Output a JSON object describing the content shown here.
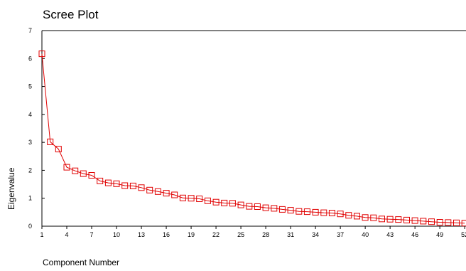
{
  "chart_data": {
    "type": "line",
    "title": "Scree Plot",
    "xlabel": "Component Number",
    "ylabel": "Eigenvalue",
    "ylim": [
      0,
      7
    ],
    "y_ticks": [
      "0",
      "1",
      "2",
      "3",
      "4",
      "5",
      "6",
      "7"
    ],
    "x_ticks": [
      "1",
      "4",
      "7",
      "10",
      "13",
      "16",
      "19",
      "22",
      "25",
      "28",
      "31",
      "34",
      "37",
      "40",
      "43",
      "46",
      "49",
      "52"
    ],
    "marker": "open-square",
    "line_color": "#e00000",
    "grid": false,
    "series": [
      {
        "x": [
          1,
          2,
          3,
          4,
          5,
          6,
          7,
          8,
          9,
          10,
          11,
          12,
          13,
          14,
          15,
          16,
          17,
          18,
          19,
          20,
          21,
          22,
          23,
          24,
          25,
          26,
          27,
          28,
          29,
          30,
          31,
          32,
          33,
          34,
          35,
          36,
          37,
          38,
          39,
          40,
          41,
          42,
          43,
          44,
          45,
          46,
          47,
          48,
          49,
          50,
          51,
          52
        ],
        "values": [
          6.17,
          3.02,
          2.76,
          2.11,
          1.98,
          1.88,
          1.82,
          1.62,
          1.55,
          1.52,
          1.45,
          1.44,
          1.38,
          1.29,
          1.24,
          1.18,
          1.12,
          1.01,
          1.0,
          0.98,
          0.91,
          0.86,
          0.83,
          0.82,
          0.76,
          0.71,
          0.7,
          0.66,
          0.64,
          0.6,
          0.57,
          0.53,
          0.52,
          0.5,
          0.48,
          0.47,
          0.44,
          0.39,
          0.36,
          0.31,
          0.3,
          0.26,
          0.25,
          0.24,
          0.22,
          0.2,
          0.18,
          0.16,
          0.14,
          0.13,
          0.12,
          0.11
        ]
      }
    ]
  }
}
